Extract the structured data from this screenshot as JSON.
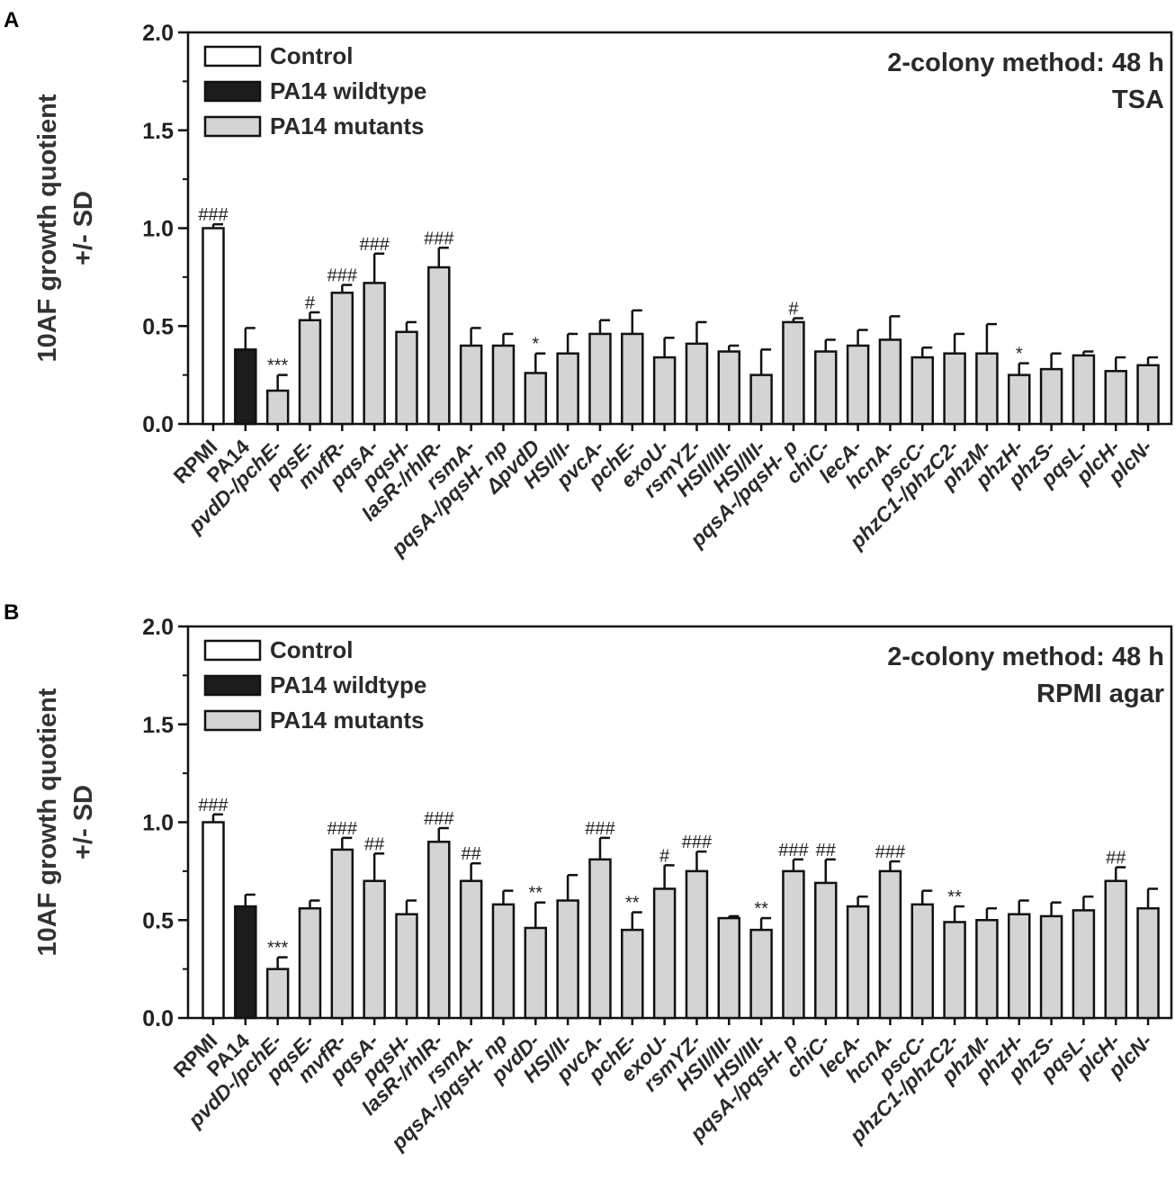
{
  "chart_data": [
    {
      "panel_label": "A",
      "type": "bar",
      "annotation_title": "2-colony method: 48 h",
      "annotation_subtitle": "TSA",
      "ylabel_line1": "10AF growth quotient",
      "ylabel_line2": "+/- SD",
      "ylim": [
        0,
        2.0
      ],
      "yticks": [
        "0.0",
        "0.5",
        "1.0",
        "1.5",
        "2.0"
      ],
      "legend": [
        "Control",
        "PA14 wildtype",
        "PA14 mutants"
      ],
      "categories": [
        "RPMI",
        "PA14",
        "pvdD-/pchE-",
        "pqsE-",
        "mvfR-",
        "pqsA-",
        "pqsH-",
        "lasR-/rhlR-",
        "rsmA-",
        "pqsA-/pqsH- np",
        "ΔpvdD",
        "HSI/II-",
        "pvcA-",
        "pchE-",
        "exoU-",
        "rsmYZ-",
        "HSII/III-",
        "HSI/III-",
        "pqsA-/pqsH- p",
        "chiC-",
        "lecA-",
        "hcnA-",
        "pscC-",
        "phzC1-/phzC2-",
        "phzM-",
        "phzH-",
        "phzS-",
        "pqsL-",
        "plcH-",
        "plcN-"
      ],
      "groups": [
        "control",
        "wildtype",
        "mutant",
        "mutant",
        "mutant",
        "mutant",
        "mutant",
        "mutant",
        "mutant",
        "mutant",
        "mutant",
        "mutant",
        "mutant",
        "mutant",
        "mutant",
        "mutant",
        "mutant",
        "mutant",
        "mutant",
        "mutant",
        "mutant",
        "mutant",
        "mutant",
        "mutant",
        "mutant",
        "mutant",
        "mutant",
        "mutant",
        "mutant",
        "mutant"
      ],
      "values": [
        1.0,
        0.38,
        0.17,
        0.53,
        0.67,
        0.72,
        0.47,
        0.8,
        0.4,
        0.4,
        0.26,
        0.36,
        0.46,
        0.46,
        0.34,
        0.41,
        0.37,
        0.25,
        0.52,
        0.37,
        0.4,
        0.43,
        0.34,
        0.36,
        0.36,
        0.25,
        0.28,
        0.35,
        0.27,
        0.3
      ],
      "sd": [
        0.02,
        0.11,
        0.08,
        0.04,
        0.04,
        0.15,
        0.05,
        0.1,
        0.09,
        0.06,
        0.1,
        0.1,
        0.07,
        0.12,
        0.1,
        0.11,
        0.03,
        0.13,
        0.02,
        0.06,
        0.08,
        0.12,
        0.05,
        0.1,
        0.15,
        0.06,
        0.08,
        0.02,
        0.07,
        0.04
      ],
      "significance": [
        "###",
        "",
        "***",
        "#",
        "###",
        "###",
        "",
        "###",
        "",
        "",
        "*",
        "",
        "",
        "",
        "",
        "",
        "",
        "",
        "#",
        "",
        "",
        "",
        "",
        "",
        "",
        "*",
        "",
        "",
        "",
        ""
      ]
    },
    {
      "panel_label": "B",
      "type": "bar",
      "annotation_title": "2-colony method: 48 h",
      "annotation_subtitle": "RPMI agar",
      "ylabel_line1": "10AF growth quotient",
      "ylabel_line2": "+/- SD",
      "ylim": [
        0,
        2.0
      ],
      "yticks": [
        "0.0",
        "0.5",
        "1.0",
        "1.5",
        "2.0"
      ],
      "legend": [
        "Control",
        "PA14 wildtype",
        "PA14 mutants"
      ],
      "categories": [
        "RPMI",
        "PA14",
        "pvdD-/pchE-",
        "pqsE-",
        "mvfR-",
        "pqsA-",
        "pqsH-",
        "lasR-/rhlR-",
        "rsmA-",
        "pqsA-/pqsH- np",
        "pvdD-",
        "HSI/II-",
        "pvcA-",
        "pchE-",
        "exoU-",
        "rsmYZ-",
        "HSII/III-",
        "HSI/III-",
        "pqsA-/pqsH- p",
        "chiC-",
        "lecA-",
        "hcnA-",
        "pscC-",
        "phzC1-/phzC2-",
        "phzM-",
        "phzH-",
        "phzS-",
        "pqsL-",
        "plcH-",
        "plcN-"
      ],
      "groups": [
        "control",
        "wildtype",
        "mutant",
        "mutant",
        "mutant",
        "mutant",
        "mutant",
        "mutant",
        "mutant",
        "mutant",
        "mutant",
        "mutant",
        "mutant",
        "mutant",
        "mutant",
        "mutant",
        "mutant",
        "mutant",
        "mutant",
        "mutant",
        "mutant",
        "mutant",
        "mutant",
        "mutant",
        "mutant",
        "mutant",
        "mutant",
        "mutant",
        "mutant",
        "mutant"
      ],
      "values": [
        1.0,
        0.57,
        0.25,
        0.56,
        0.86,
        0.7,
        0.53,
        0.9,
        0.7,
        0.58,
        0.46,
        0.6,
        0.81,
        0.45,
        0.66,
        0.75,
        0.51,
        0.45,
        0.75,
        0.69,
        0.57,
        0.75,
        0.58,
        0.49,
        0.5,
        0.53,
        0.52,
        0.55,
        0.7,
        0.56
      ],
      "sd": [
        0.04,
        0.06,
        0.06,
        0.04,
        0.06,
        0.14,
        0.07,
        0.07,
        0.09,
        0.07,
        0.13,
        0.13,
        0.11,
        0.09,
        0.12,
        0.1,
        0.01,
        0.06,
        0.06,
        0.12,
        0.05,
        0.05,
        0.07,
        0.08,
        0.06,
        0.07,
        0.07,
        0.07,
        0.07,
        0.1
      ],
      "significance": [
        "###",
        "",
        "***",
        "",
        "###",
        "##",
        "",
        "###",
        "##",
        "",
        "**",
        "",
        "###",
        "**",
        "#",
        "###",
        "",
        "**",
        "###",
        "##",
        "",
        "###",
        "",
        "**",
        "",
        "",
        "",
        "",
        "##",
        ""
      ]
    }
  ],
  "colors": {
    "control_fill": "#ffffff",
    "wildtype_fill": "#1c1c1c",
    "mutant_fill": "#d4d4d4",
    "stroke": "#111111"
  }
}
